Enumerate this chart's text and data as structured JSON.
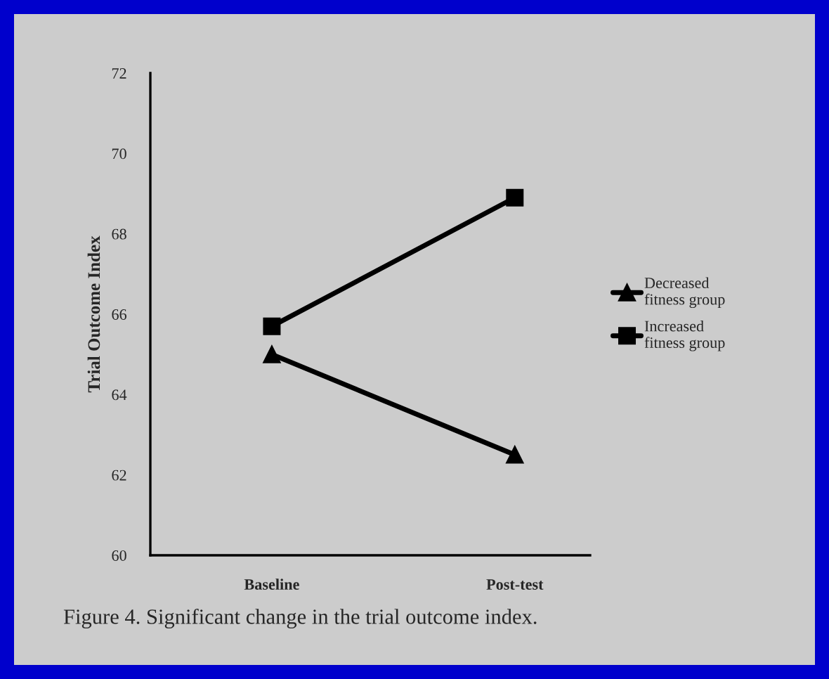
{
  "chart_data": {
    "type": "line",
    "ylabel": "Trial Outcome Index",
    "categories": [
      "Baseline",
      "Post-test"
    ],
    "series": [
      {
        "name": "Decreased\nfitness group",
        "color": "#000000",
        "marker": "triangle",
        "values": [
          65.0,
          62.5
        ]
      },
      {
        "name": "Increased\nfitness group",
        "color": "#000000",
        "marker": "square",
        "values": [
          65.7,
          68.9
        ]
      }
    ],
    "ylim": [
      60,
      72
    ],
    "yticks": [
      60,
      62,
      64,
      66,
      68,
      70,
      72
    ],
    "legend": "right",
    "line_style": "solid",
    "annotations": [
      "Figure 4. Significant change in the trial outcome index."
    ]
  }
}
